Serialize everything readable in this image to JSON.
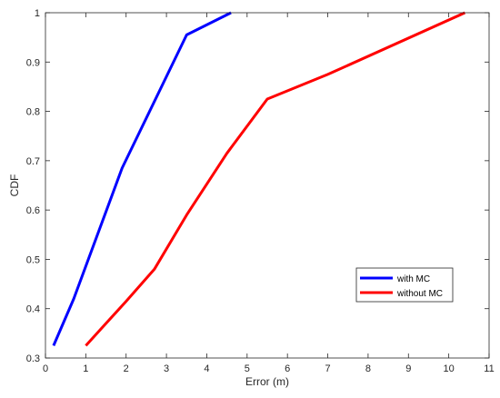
{
  "chart_data": {
    "type": "line",
    "xlabel": "Error (m)",
    "ylabel": "CDF",
    "xlim": [
      0,
      11
    ],
    "ylim": [
      0.3,
      1
    ],
    "x_ticks": [
      0,
      1,
      2,
      3,
      4,
      5,
      6,
      7,
      8,
      9,
      10,
      11
    ],
    "y_ticks": [
      0.3,
      0.4,
      0.5,
      0.6,
      0.7,
      0.8,
      0.9,
      1
    ],
    "x_tick_labels": [
      "0",
      "1",
      "2",
      "3",
      "4",
      "5",
      "6",
      "7",
      "8",
      "9",
      "10",
      "11"
    ],
    "y_tick_labels": [
      "0.3",
      "0.4",
      "0.5",
      "0.6",
      "0.7",
      "0.8",
      "0.9",
      "1"
    ],
    "grid": false,
    "legend_position": "bottom-right",
    "series": [
      {
        "name": "with MC",
        "color": "#0000ff",
        "points": [
          [
            0.2,
            0.325
          ],
          [
            0.7,
            0.42
          ],
          [
            1.9,
            0.685
          ],
          [
            3.5,
            0.955
          ],
          [
            4.6,
            1.0
          ]
        ]
      },
      {
        "name": "without MC",
        "color": "#ff0000",
        "points": [
          [
            1.0,
            0.325
          ],
          [
            1.5,
            0.37
          ],
          [
            2.0,
            0.415
          ],
          [
            2.7,
            0.48
          ],
          [
            3.5,
            0.59
          ],
          [
            4.5,
            0.715
          ],
          [
            5.5,
            0.825
          ],
          [
            7.0,
            0.875
          ],
          [
            10.4,
            1.0
          ]
        ]
      }
    ]
  }
}
